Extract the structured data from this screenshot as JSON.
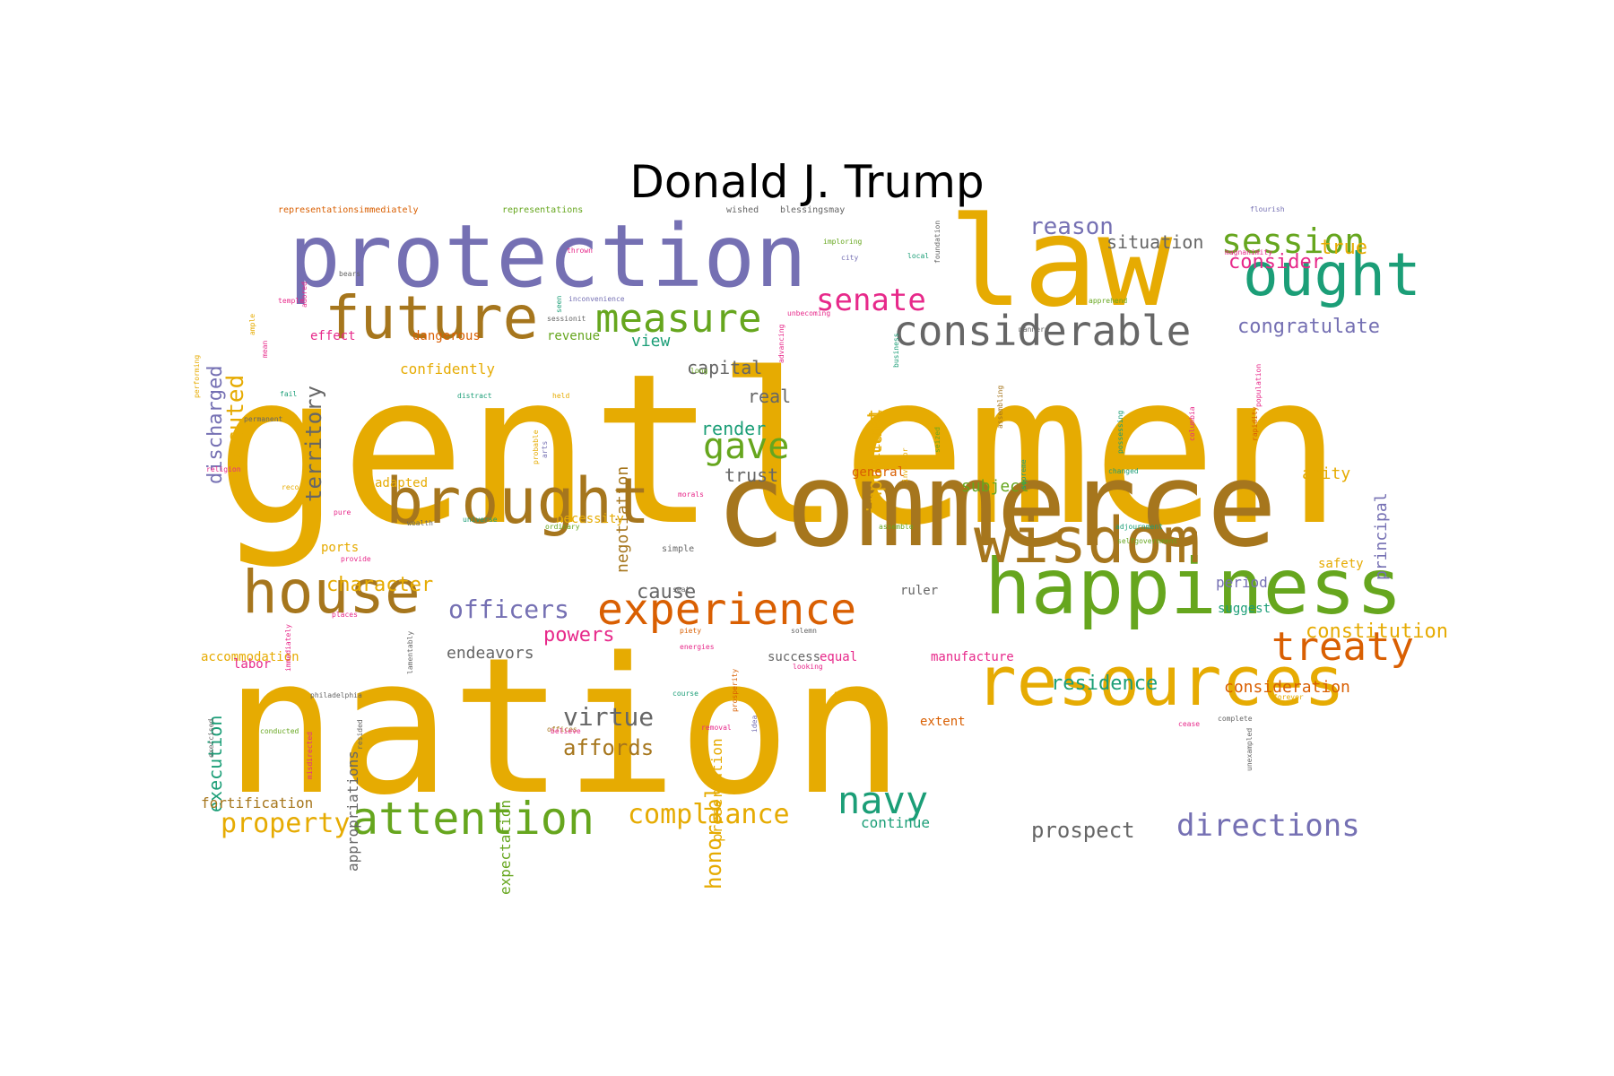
{
  "title": "Donald J. Trump",
  "palette": [
    "#e6ab02",
    "#a6761d",
    "#7570b3",
    "#1b9e77",
    "#66a61e",
    "#e7298a",
    "#d95f02",
    "#666666"
  ],
  "words": [
    {
      "text": "gentlemen",
      "c": 0
    },
    {
      "text": "nation",
      "c": 0
    },
    {
      "text": "law",
      "c": 0
    },
    {
      "text": "commerce",
      "c": 1
    },
    {
      "text": "protection",
      "c": 2
    },
    {
      "text": "happiness",
      "c": 4
    },
    {
      "text": "resources",
      "c": 0
    },
    {
      "text": "wisdom",
      "c": 1
    },
    {
      "text": "future",
      "c": 1
    },
    {
      "text": "house",
      "c": 1
    },
    {
      "text": "brought",
      "c": 1
    },
    {
      "text": "ought",
      "c": 3
    },
    {
      "text": "experience",
      "c": 6
    },
    {
      "text": "considerable",
      "c": 7
    },
    {
      "text": "measure",
      "c": 4
    },
    {
      "text": "treaty",
      "c": 6
    },
    {
      "text": "attention",
      "c": 4
    },
    {
      "text": "navy",
      "c": 3
    },
    {
      "text": "directions",
      "c": 2
    },
    {
      "text": "session",
      "c": 4
    },
    {
      "text": "officers",
      "c": 2
    },
    {
      "text": "senate",
      "c": 5
    },
    {
      "text": "gave",
      "c": 4
    },
    {
      "text": "property",
      "c": 0
    },
    {
      "text": "compliance",
      "c": 0
    },
    {
      "text": "virtue",
      "c": 7
    },
    {
      "text": "prospect",
      "c": 7
    },
    {
      "text": "constitution",
      "c": 0
    },
    {
      "text": "reason",
      "c": 2
    },
    {
      "text": "congratulate",
      "c": 2
    },
    {
      "text": "residence",
      "c": 3
    },
    {
      "text": "affords",
      "c": 1
    },
    {
      "text": "executed",
      "c": 0
    },
    {
      "text": "consider",
      "c": 5
    },
    {
      "text": "true",
      "c": 0
    },
    {
      "text": "powers",
      "c": 5
    },
    {
      "text": "consideration",
      "c": 6
    },
    {
      "text": "honorable",
      "c": 0
    },
    {
      "text": "character",
      "c": 0
    },
    {
      "text": "cause",
      "c": 7
    },
    {
      "text": "situation",
      "c": 7
    },
    {
      "text": "territory",
      "c": 7
    },
    {
      "text": "discharged",
      "c": 2
    },
    {
      "text": "important",
      "c": 0
    },
    {
      "text": "render",
      "c": 3
    },
    {
      "text": "capital",
      "c": 7
    },
    {
      "text": "real",
      "c": 7
    },
    {
      "text": "trust",
      "c": 7
    },
    {
      "text": "view",
      "c": 3
    },
    {
      "text": "subject",
      "c": 4
    },
    {
      "text": "amity",
      "c": 0
    },
    {
      "text": "negotiation",
      "c": 1
    },
    {
      "text": "execution",
      "c": 3
    },
    {
      "text": "endeavors",
      "c": 7
    },
    {
      "text": "preservation",
      "c": 0
    },
    {
      "text": "expectation",
      "c": 4
    },
    {
      "text": "appropriations",
      "c": 7
    },
    {
      "text": "fortification",
      "c": 1
    },
    {
      "text": "continue",
      "c": 3
    },
    {
      "text": "national",
      "c": 0
    },
    {
      "text": "principal",
      "c": 2
    },
    {
      "text": "period",
      "c": 2
    },
    {
      "text": "suggest",
      "c": 3
    },
    {
      "text": "safety",
      "c": 0
    },
    {
      "text": "equal",
      "c": 5
    },
    {
      "text": "manufacture",
      "c": 5
    },
    {
      "text": "success",
      "c": 7
    },
    {
      "text": "accommodation",
      "c": 0
    },
    {
      "text": "adapted",
      "c": 0
    },
    {
      "text": "dangerous",
      "c": 6
    },
    {
      "text": "effect",
      "c": 5
    },
    {
      "text": "confidently",
      "c": 0
    },
    {
      "text": "revenue",
      "c": 4
    },
    {
      "text": "necessity",
      "c": 0
    },
    {
      "text": "ports",
      "c": 0
    },
    {
      "text": "general",
      "c": 6
    },
    {
      "text": "extent",
      "c": 6
    },
    {
      "text": "labor",
      "c": 5
    },
    {
      "text": "ruler",
      "c": 7
    },
    {
      "text": "representationsimmediately",
      "c": 6
    },
    {
      "text": "representations",
      "c": 4
    },
    {
      "text": "wished",
      "c": 7
    },
    {
      "text": "blessingsmay",
      "c": 7
    },
    {
      "text": "flourish",
      "c": 2
    },
    {
      "text": "thrown",
      "c": 5
    },
    {
      "text": "imploring",
      "c": 4
    },
    {
      "text": "magnanimity",
      "c": 5
    },
    {
      "text": "inconvenience",
      "c": 2
    },
    {
      "text": "unbecoming",
      "c": 5
    },
    {
      "text": "apprehend",
      "c": 4
    },
    {
      "text": "sessionit",
      "c": 7
    },
    {
      "text": "manners",
      "c": 7
    },
    {
      "text": "city",
      "c": 2
    },
    {
      "text": "local",
      "c": 3
    },
    {
      "text": "bears",
      "c": 7
    },
    {
      "text": "temple",
      "c": 5
    },
    {
      "text": "long",
      "c": 4
    },
    {
      "text": "fail",
      "c": 3
    },
    {
      "text": "permanent",
      "c": 7
    },
    {
      "text": "distract",
      "c": 3
    },
    {
      "text": "held",
      "c": 0
    },
    {
      "text": "religion",
      "c": 5
    },
    {
      "text": "records",
      "c": 0
    },
    {
      "text": "pure",
      "c": 5
    },
    {
      "text": "morals",
      "c": 5
    },
    {
      "text": "universe",
      "c": 3
    },
    {
      "text": "wealth",
      "c": 7
    },
    {
      "text": "ordinary",
      "c": 4
    },
    {
      "text": "provide",
      "c": 5
    },
    {
      "text": "simple",
      "c": 7
    },
    {
      "text": "assemble",
      "c": 4
    },
    {
      "text": "adjournment",
      "c": 3
    },
    {
      "text": "selfgovernment",
      "c": 4
    },
    {
      "text": "places",
      "c": 5
    },
    {
      "text": "piety",
      "c": 6
    },
    {
      "text": "energies",
      "c": 5
    },
    {
      "text": "solemn",
      "c": 7
    },
    {
      "text": "looking",
      "c": 5
    },
    {
      "text": "secure",
      "c": 0
    },
    {
      "text": "course",
      "c": 3
    },
    {
      "text": "philadelphia",
      "c": 7
    },
    {
      "text": "offices",
      "c": 1
    },
    {
      "text": "believe",
      "c": 5
    },
    {
      "text": "removal",
      "c": 5
    },
    {
      "text": "complete",
      "c": 7
    },
    {
      "text": "conducted",
      "c": 4
    },
    {
      "text": "changed",
      "c": 3
    },
    {
      "text": "seat",
      "c": 7
    },
    {
      "text": "cease",
      "c": 5
    },
    {
      "text": "forever",
      "c": 0
    },
    {
      "text": "population",
      "c": 5
    },
    {
      "text": "rapidity",
      "c": 6
    },
    {
      "text": "columbia",
      "c": 5
    },
    {
      "text": "supreme",
      "c": 3
    },
    {
      "text": "misdirected",
      "c": 5
    },
    {
      "text": "unexampled",
      "c": 7
    },
    {
      "text": "exercised",
      "c": 7
    },
    {
      "text": "adored",
      "c": 5
    },
    {
      "text": "ample",
      "c": 0
    },
    {
      "text": "mean",
      "c": 5
    },
    {
      "text": "performing",
      "c": 0
    },
    {
      "text": "seized",
      "c": 4
    },
    {
      "text": "business",
      "c": 3
    },
    {
      "text": "possessing",
      "c": 3
    },
    {
      "text": "prosperity",
      "c": 6
    },
    {
      "text": "lamentably",
      "c": 7
    },
    {
      "text": "immediately",
      "c": 5
    },
    {
      "text": "resided",
      "c": 7
    },
    {
      "text": "probable",
      "c": 0
    },
    {
      "text": "arts",
      "c": 2
    },
    {
      "text": "idea",
      "c": 2
    },
    {
      "text": "advancing",
      "c": 5
    },
    {
      "text": "assembling",
      "c": 1
    },
    {
      "text": "inventor",
      "c": 0
    },
    {
      "text": "foundation",
      "c": 7
    },
    {
      "text": "seen",
      "c": 3
    }
  ]
}
